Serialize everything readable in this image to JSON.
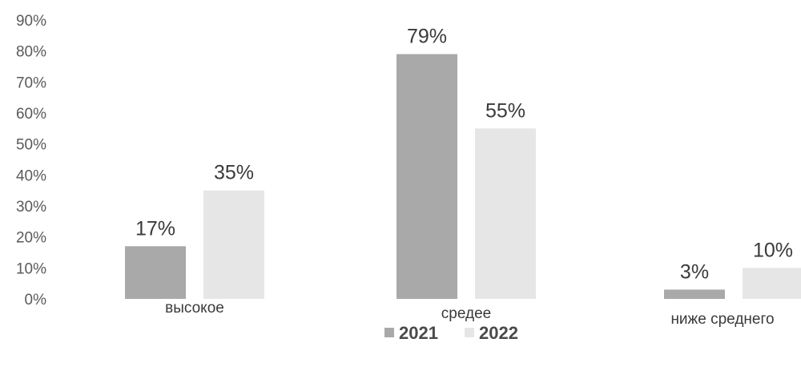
{
  "chart_data": {
    "type": "bar",
    "title": "",
    "xlabel": "",
    "ylabel": "",
    "ylim": [
      0,
      90
    ],
    "y_ticks": [
      "0%",
      "10%",
      "20%",
      "30%",
      "40%",
      "50%",
      "60%",
      "70%",
      "80%",
      "90%"
    ],
    "grid": false,
    "legend_position": "bottom",
    "categories": [
      "высокое",
      "средее",
      "ниже среднего"
    ],
    "series": [
      {
        "name": "2021",
        "color": "#a9a9a9",
        "values": [
          17,
          79,
          3
        ],
        "labels": [
          "17%",
          "79%",
          "3%"
        ]
      },
      {
        "name": "2022",
        "color": "#e6e6e6",
        "values": [
          35,
          55,
          10
        ],
        "labels": [
          "35%",
          "55%",
          "10%"
        ]
      }
    ]
  }
}
